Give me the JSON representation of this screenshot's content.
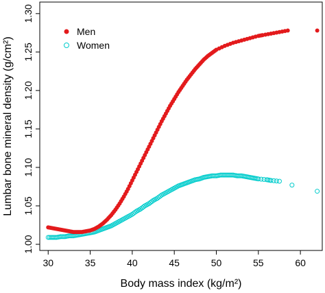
{
  "chart_data": {
    "type": "scatter",
    "xlabel": "Body mass index (kg/m²)",
    "ylabel": "Lumbar bone mineral density (g/cm²)",
    "xlim": [
      29,
      62.6
    ],
    "ylim": [
      0.992,
      1.315
    ],
    "x_ticks": [
      30,
      35,
      40,
      45,
      50,
      55,
      60
    ],
    "y_ticks": [
      1.0,
      1.05,
      1.1,
      1.15,
      1.2,
      1.25,
      1.3
    ],
    "x_tick_labels": [
      "30",
      "35",
      "40",
      "45",
      "50",
      "55",
      "60"
    ],
    "y_tick_labels": [
      "1.00",
      "1.05",
      "1.10",
      "1.15",
      "1.20",
      "1.25",
      "1.30"
    ],
    "legend": {
      "position": "top-left"
    },
    "series": [
      {
        "name": "Men",
        "marker": "filled-circle",
        "color": "#e31a1c",
        "points": [
          [
            30.0,
            1.022
          ],
          [
            30.5,
            1.021
          ],
          [
            31.0,
            1.02
          ],
          [
            31.5,
            1.019
          ],
          [
            32.0,
            1.018
          ],
          [
            32.5,
            1.017
          ],
          [
            33.0,
            1.016
          ],
          [
            33.5,
            1.016
          ],
          [
            34.0,
            1.016
          ],
          [
            34.5,
            1.017
          ],
          [
            35.0,
            1.018
          ],
          [
            35.5,
            1.02
          ],
          [
            36.0,
            1.023
          ],
          [
            36.5,
            1.027
          ],
          [
            37.0,
            1.032
          ],
          [
            37.5,
            1.038
          ],
          [
            38.0,
            1.045
          ],
          [
            38.5,
            1.053
          ],
          [
            39.0,
            1.062
          ],
          [
            39.5,
            1.072
          ],
          [
            40.0,
            1.083
          ],
          [
            40.5,
            1.094
          ],
          [
            41.0,
            1.105
          ],
          [
            41.5,
            1.116
          ],
          [
            42.0,
            1.127
          ],
          [
            42.5,
            1.138
          ],
          [
            43.0,
            1.149
          ],
          [
            43.5,
            1.16
          ],
          [
            44.0,
            1.17
          ],
          [
            44.5,
            1.18
          ],
          [
            45.0,
            1.189
          ],
          [
            45.5,
            1.198
          ],
          [
            46.0,
            1.206
          ],
          [
            46.5,
            1.214
          ],
          [
            47.0,
            1.221
          ],
          [
            47.5,
            1.228
          ],
          [
            48.0,
            1.234
          ],
          [
            48.5,
            1.24
          ],
          [
            49.0,
            1.245
          ],
          [
            49.5,
            1.249
          ],
          [
            50.0,
            1.253
          ],
          [
            51.0,
            1.258
          ],
          [
            52.0,
            1.262
          ],
          [
            53.0,
            1.265
          ],
          [
            54.0,
            1.268
          ],
          [
            55.0,
            1.271
          ],
          [
            55.5,
            1.272
          ],
          [
            56.5,
            1.274
          ],
          [
            57.5,
            1.276
          ],
          [
            58.5,
            1.278
          ],
          [
            62.0,
            1.278
          ]
        ]
      },
      {
        "name": "Women",
        "marker": "open-circle",
        "color": "#00cccc",
        "points": [
          [
            30.0,
            1.009
          ],
          [
            30.5,
            1.009
          ],
          [
            31.0,
            1.009
          ],
          [
            31.5,
            1.01
          ],
          [
            32.0,
            1.01
          ],
          [
            32.5,
            1.011
          ],
          [
            33.0,
            1.011
          ],
          [
            33.5,
            1.012
          ],
          [
            34.0,
            1.013
          ],
          [
            34.5,
            1.014
          ],
          [
            35.0,
            1.015
          ],
          [
            35.5,
            1.016
          ],
          [
            36.0,
            1.018
          ],
          [
            36.5,
            1.02
          ],
          [
            37.0,
            1.022
          ],
          [
            37.5,
            1.024
          ],
          [
            38.0,
            1.027
          ],
          [
            38.5,
            1.03
          ],
          [
            39.0,
            1.033
          ],
          [
            39.5,
            1.036
          ],
          [
            40.0,
            1.039
          ],
          [
            40.5,
            1.043
          ],
          [
            41.0,
            1.046
          ],
          [
            41.5,
            1.05
          ],
          [
            42.0,
            1.053
          ],
          [
            42.5,
            1.057
          ],
          [
            43.0,
            1.06
          ],
          [
            43.5,
            1.064
          ],
          [
            44.0,
            1.067
          ],
          [
            44.5,
            1.07
          ],
          [
            45.0,
            1.073
          ],
          [
            45.5,
            1.076
          ],
          [
            46.0,
            1.078
          ],
          [
            46.5,
            1.08
          ],
          [
            47.0,
            1.082
          ],
          [
            47.5,
            1.084
          ],
          [
            48.0,
            1.085
          ],
          [
            48.5,
            1.087
          ],
          [
            49.0,
            1.088
          ],
          [
            49.5,
            1.089
          ],
          [
            50.0,
            1.089
          ],
          [
            50.5,
            1.09
          ],
          [
            51.0,
            1.09
          ],
          [
            51.5,
            1.09
          ],
          [
            52.0,
            1.09
          ],
          [
            52.5,
            1.089
          ],
          [
            53.0,
            1.089
          ],
          [
            53.5,
            1.088
          ],
          [
            54.0,
            1.087
          ],
          [
            54.5,
            1.086
          ],
          [
            55.0,
            1.085
          ],
          [
            56.0,
            1.084
          ],
          [
            56.5,
            1.083
          ],
          [
            57.5,
            1.082
          ],
          [
            59.0,
            1.077
          ],
          [
            62.0,
            1.069
          ]
        ]
      }
    ]
  }
}
